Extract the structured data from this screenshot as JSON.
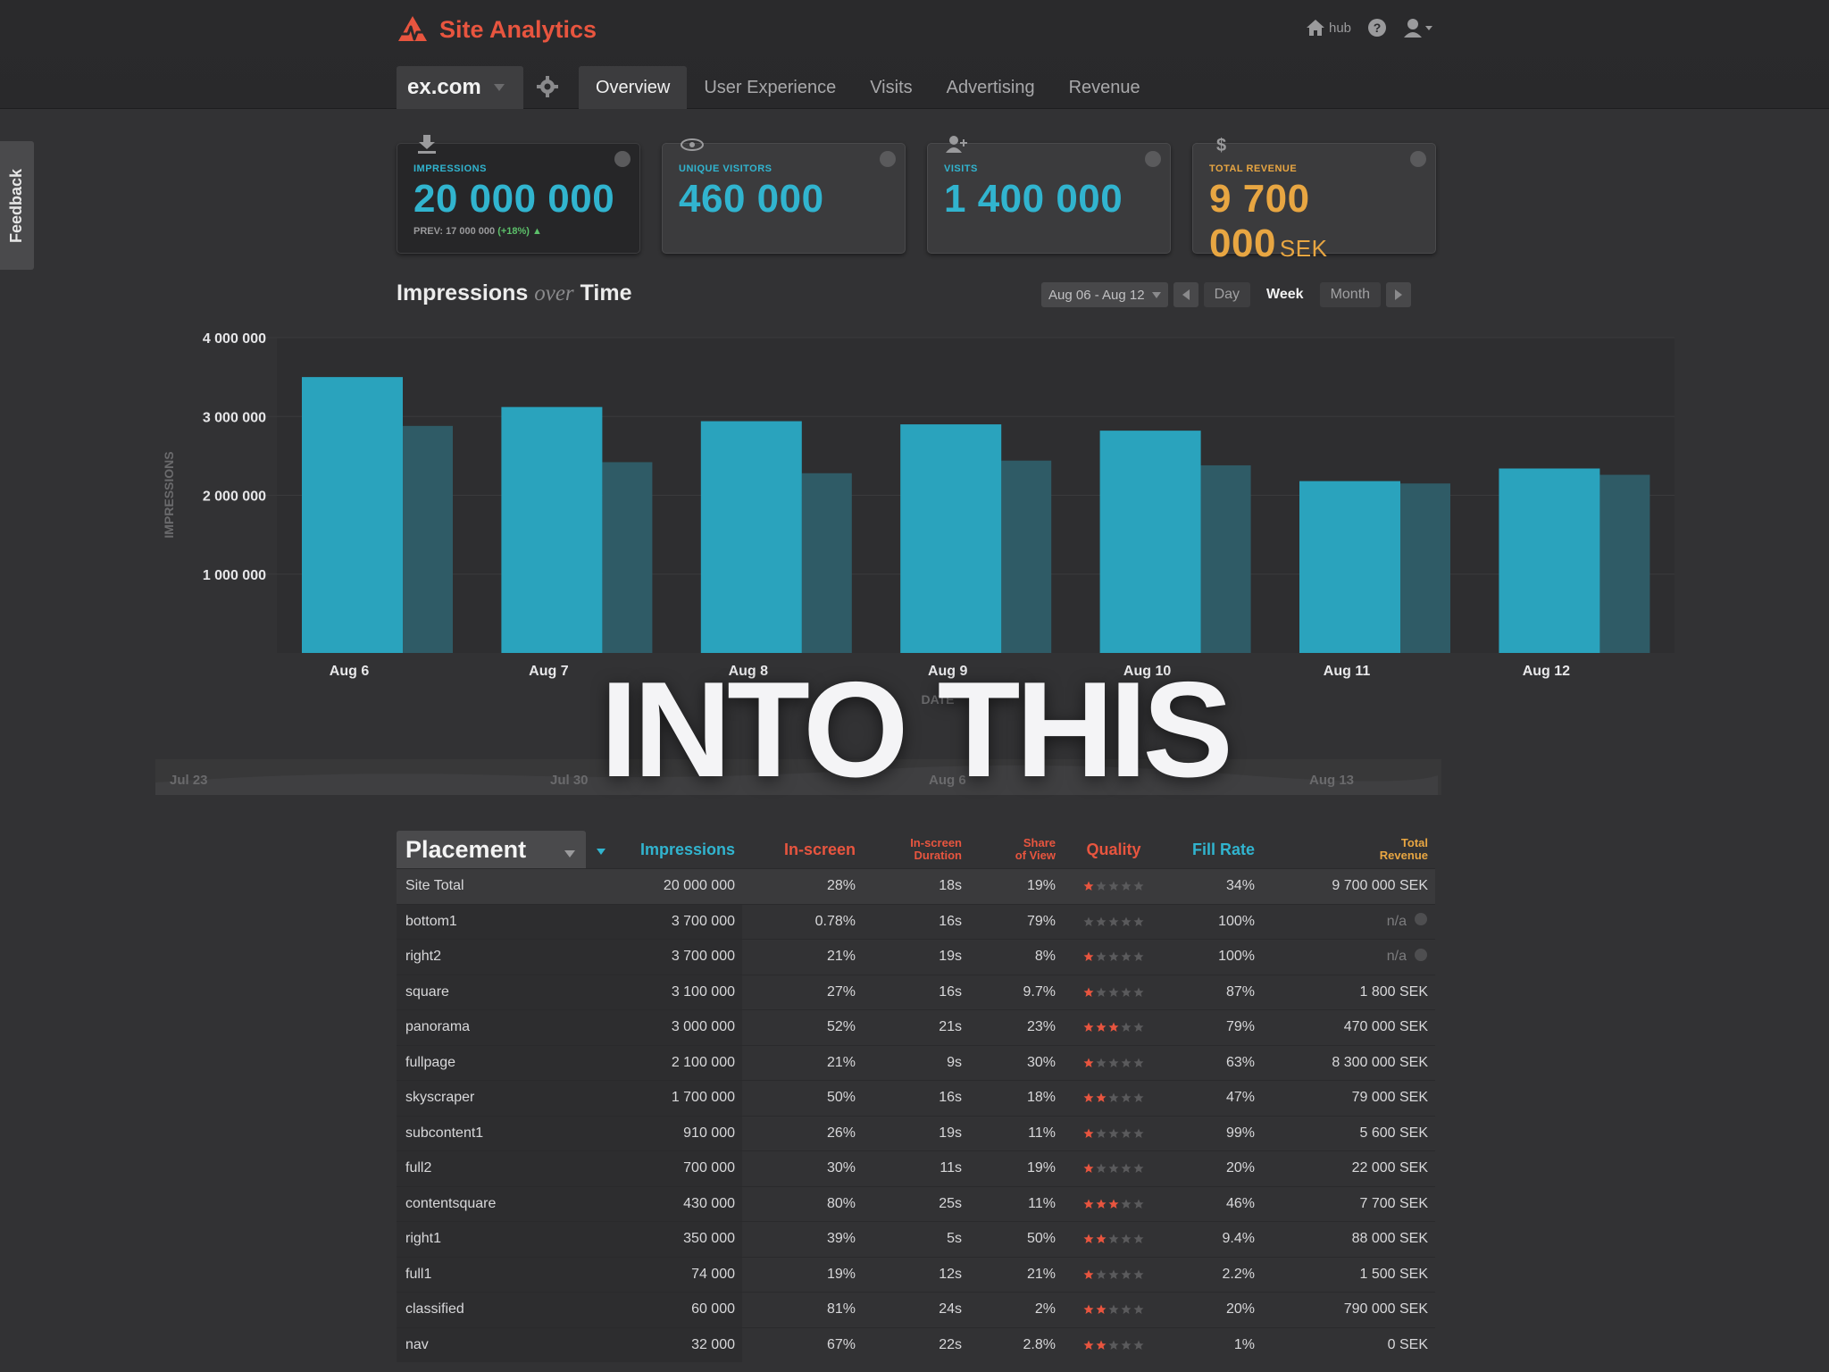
{
  "app": {
    "title": "Site Analytics",
    "hub_label": "hub"
  },
  "site": {
    "name": "ex.com"
  },
  "tabs": [
    {
      "label": "Overview",
      "active": true
    },
    {
      "label": "User Experience",
      "active": false
    },
    {
      "label": "Visits",
      "active": false
    },
    {
      "label": "Advertising",
      "active": false
    },
    {
      "label": "Revenue",
      "active": false
    }
  ],
  "feedback_label": "Feedback",
  "cards": [
    {
      "label": "IMPRESSIONS",
      "value": "20 000 000",
      "prev": "PREV: 17 000 000",
      "delta": "(+18%)",
      "color": "#31b4cf",
      "icon": "download-icon"
    },
    {
      "label": "UNIQUE VISITORS",
      "value": "460 000",
      "color": "#31b4cf",
      "icon": "eye-icon"
    },
    {
      "label": "VISITS",
      "value": "1 400 000",
      "color": "#31b4cf",
      "icon": "add-user-icon"
    },
    {
      "label": "TOTAL REVENUE",
      "value": "9 700 000",
      "unit": "SEK",
      "color": "#e8a642",
      "icon": "dollar-icon"
    }
  ],
  "chart_header": {
    "title_a": "Impressions",
    "title_over": "over",
    "title_b": "Time",
    "range": "Aug 06 - Aug 12",
    "periods": [
      {
        "label": "Day",
        "active": false
      },
      {
        "label": "Week",
        "active": true
      },
      {
        "label": "Month",
        "active": false
      }
    ]
  },
  "chart_data": {
    "type": "bar",
    "categories": [
      "Aug 6",
      "Aug 7",
      "Aug 8",
      "Aug 9",
      "Aug 10",
      "Aug 11",
      "Aug 12"
    ],
    "series": [
      {
        "values": [
          3500000,
          3120000,
          2940000,
          2900000,
          2820000,
          2180000,
          2340000
        ],
        "color": "#2aa3bd"
      },
      {
        "values": [
          2880000,
          2420000,
          2280000,
          2440000,
          2380000,
          2150000,
          2260000
        ],
        "color": "#2f5b66"
      }
    ],
    "ylabel": "IMPRESSIONS",
    "xlabel": "DATE",
    "yticks": [
      "1 000 000",
      "2 000 000",
      "3 000 000",
      "4 000 000"
    ],
    "ytick_values": [
      1000000,
      2000000,
      3000000,
      4000000
    ],
    "ylim": [
      0,
      4000000
    ],
    "navigator_labels": [
      "Jul 23",
      "Jul 30",
      "Aug 6",
      "Aug 13"
    ]
  },
  "overlay_text": "INTO THIS",
  "table": {
    "headers": {
      "placement": "Placement",
      "impressions": "Impressions",
      "inscreen": "In-screen",
      "duration_1": "In-screen",
      "duration_2": "Duration",
      "share_1": "Share",
      "share_2": "of View",
      "quality": "Quality",
      "fillrate": "Fill Rate",
      "revenue_1": "Total",
      "revenue_2": "Revenue"
    },
    "header_colors": {
      "blue": "#31b4cf",
      "orange": "#e8553f",
      "gold": "#e8a642"
    },
    "rows": [
      {
        "name": "Site Total",
        "impressions": "20 000 000",
        "inscreen": "28%",
        "duration": "18s",
        "share": "19%",
        "quality": 1,
        "fillrate": "34%",
        "revenue": "9 700 000 SEK"
      },
      {
        "name": "bottom1",
        "impressions": "3 700 000",
        "inscreen": "0.78%",
        "duration": "16s",
        "share": "79%",
        "quality": 0,
        "fillrate": "100%",
        "revenue": "n/a"
      },
      {
        "name": "right2",
        "impressions": "3 700 000",
        "inscreen": "21%",
        "duration": "19s",
        "share": "8%",
        "quality": 1,
        "fillrate": "100%",
        "revenue": "n/a"
      },
      {
        "name": "square",
        "impressions": "3 100 000",
        "inscreen": "27%",
        "duration": "16s",
        "share": "9.7%",
        "quality": 1,
        "fillrate": "87%",
        "revenue": "1 800 SEK"
      },
      {
        "name": "panorama",
        "impressions": "3 000 000",
        "inscreen": "52%",
        "duration": "21s",
        "share": "23%",
        "quality": 3,
        "fillrate": "79%",
        "revenue": "470 000 SEK"
      },
      {
        "name": "fullpage",
        "impressions": "2 100 000",
        "inscreen": "21%",
        "duration": "9s",
        "share": "30%",
        "quality": 1,
        "fillrate": "63%",
        "revenue": "8 300 000 SEK"
      },
      {
        "name": "skyscraper",
        "impressions": "1 700 000",
        "inscreen": "50%",
        "duration": "16s",
        "share": "18%",
        "quality": 2,
        "fillrate": "47%",
        "revenue": "79 000 SEK"
      },
      {
        "name": "subcontent1",
        "impressions": "910 000",
        "inscreen": "26%",
        "duration": "19s",
        "share": "11%",
        "quality": 1,
        "fillrate": "99%",
        "revenue": "5 600 SEK"
      },
      {
        "name": "full2",
        "impressions": "700 000",
        "inscreen": "30%",
        "duration": "11s",
        "share": "19%",
        "quality": 1,
        "fillrate": "20%",
        "revenue": "22 000 SEK"
      },
      {
        "name": "contentsquare",
        "impressions": "430 000",
        "inscreen": "80%",
        "duration": "25s",
        "share": "11%",
        "quality": 3,
        "fillrate": "46%",
        "revenue": "7 700 SEK"
      },
      {
        "name": "right1",
        "impressions": "350 000",
        "inscreen": "39%",
        "duration": "5s",
        "share": "50%",
        "quality": 2,
        "fillrate": "9.4%",
        "revenue": "88 000 SEK"
      },
      {
        "name": "full1",
        "impressions": "74 000",
        "inscreen": "19%",
        "duration": "12s",
        "share": "21%",
        "quality": 1,
        "fillrate": "2.2%",
        "revenue": "1 500 SEK"
      },
      {
        "name": "classified",
        "impressions": "60 000",
        "inscreen": "81%",
        "duration": "24s",
        "share": "2%",
        "quality": 2,
        "fillrate": "20%",
        "revenue": "790 000 SEK"
      },
      {
        "name": "nav",
        "impressions": "32 000",
        "inscreen": "67%",
        "duration": "22s",
        "share": "2.8%",
        "quality": 2,
        "fillrate": "1%",
        "revenue": "0 SEK"
      }
    ]
  }
}
